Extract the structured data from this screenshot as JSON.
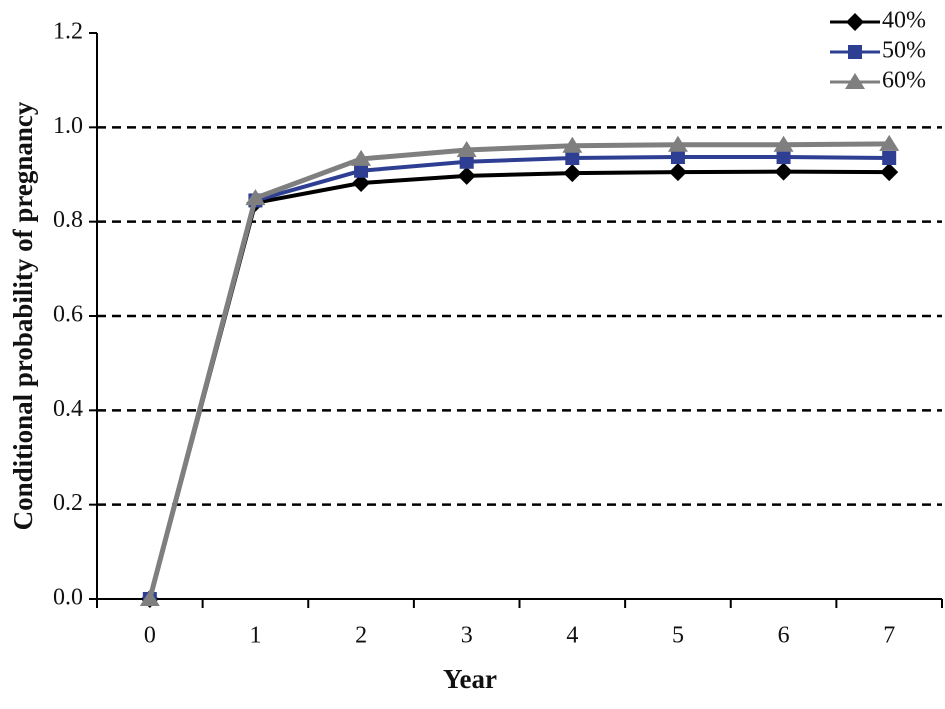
{
  "chart_data": {
    "type": "line",
    "xlabel": "Year",
    "ylabel": "Conditional probability of pregnancy",
    "categories": [
      "0",
      "1",
      "2",
      "3",
      "4",
      "5",
      "6",
      "7"
    ],
    "series": [
      {
        "name": "40%",
        "color": "#000000",
        "marker": "diamond",
        "values": [
          0,
          0.84,
          0.882,
          0.897,
          0.903,
          0.905,
          0.906,
          0.905
        ]
      },
      {
        "name": "50%",
        "color": "#2e3f93",
        "marker": "square",
        "values": [
          0,
          0.845,
          0.908,
          0.927,
          0.935,
          0.937,
          0.937,
          0.935
        ]
      },
      {
        "name": "60%",
        "color": "#7f7f7f",
        "marker": "triangle",
        "values": [
          0,
          0.85,
          0.933,
          0.952,
          0.961,
          0.963,
          0.963,
          0.965
        ]
      }
    ],
    "ylim": [
      0,
      1.2
    ],
    "yticks": [
      {
        "value": 0,
        "label": "0.0"
      },
      0.2,
      0.4,
      0.6,
      0.8,
      {
        "value": 1,
        "label": "1.0"
      },
      1.2
    ],
    "grid": true,
    "legend": "top-right"
  }
}
